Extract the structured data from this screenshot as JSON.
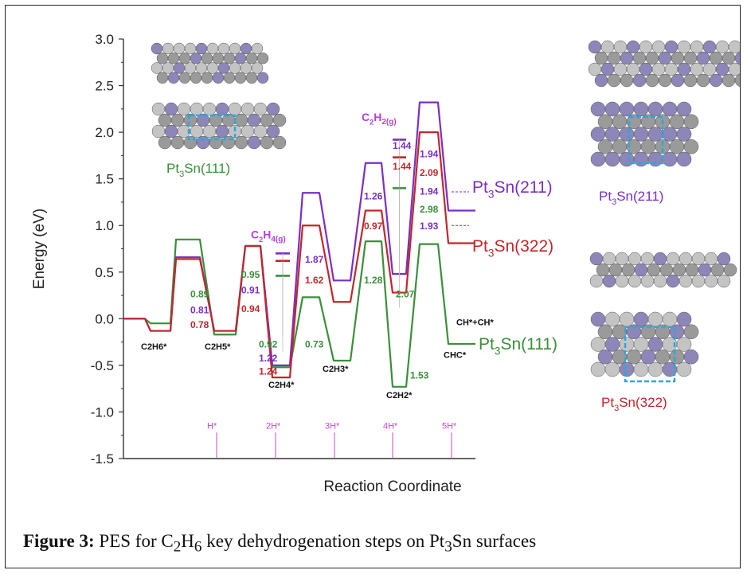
{
  "chart_data": {
    "type": "line",
    "xlabel": "Reaction Coordinate",
    "ylabel": "Energy (eV)",
    "ylim": [
      -1.5,
      3.0
    ],
    "yticks": [
      "3.0",
      "2.5",
      "2.0",
      "1.5",
      "1.0",
      "0.5",
      "0.0",
      "-0.5",
      "-1.0",
      "-1.5"
    ],
    "colors": {
      "Pt3Sn(111)": "#3a8f3a",
      "Pt3Sn(211)": "#7a2fc4",
      "Pt3Sn(322)": "#c0282c",
      "hydrogen_axis": "#cc44cc",
      "highlight": "#2aa7e0"
    },
    "series": [
      {
        "name": "Pt3Sn(111)",
        "levels": [
          0.0,
          -0.05,
          0.85,
          -0.17,
          0.78,
          -0.52,
          0.23,
          -0.45,
          0.83,
          -0.73,
          0.8,
          -0.27
        ]
      },
      {
        "name": "Pt3Sn(211)",
        "levels": [
          0.0,
          -0.13,
          0.66,
          -0.13,
          0.78,
          -0.5,
          1.35,
          0.41,
          1.67,
          0.48,
          2.32,
          1.16
        ]
      },
      {
        "name": "Pt3Sn(322)",
        "levels": [
          0.0,
          -0.13,
          0.64,
          -0.13,
          0.78,
          -0.63,
          1.0,
          0.18,
          1.16,
          0.28,
          2.0,
          0.81
        ]
      }
    ],
    "gas_levels": [
      {
        "name": "C2H4(g)",
        "values": {
          "Pt3Sn(211)": 0.7,
          "Pt3Sn(322)": 0.62,
          "Pt3Sn(111)": 0.46
        }
      },
      {
        "name": "C2H2(g)",
        "values": {
          "Pt3Sn(211)": 1.92,
          "Pt3Sn(322)": 1.73,
          "Pt3Sn(111)": 1.4
        }
      }
    ],
    "intermediates": [
      "C2H6*",
      "C2H5*",
      "C2H4*",
      "C2H3*",
      "C2H2*",
      "CHC*",
      "CH*+CH*"
    ],
    "hydrogen_marks": [
      "H*",
      "2H*",
      "3H*",
      "4H*",
      "5H*"
    ],
    "barrier_labels": [
      {
        "text": "0.89",
        "series": "Pt3Sn(111)",
        "e": 0.23
      },
      {
        "text": "0.81",
        "series": "Pt3Sn(211)",
        "e": 0.06
      },
      {
        "text": "0.78",
        "series": "Pt3Sn(322)",
        "e": -0.1
      },
      {
        "text": "0.95",
        "series": "Pt3Sn(111)",
        "e": 0.44
      },
      {
        "text": "0.91",
        "series": "Pt3Sn(211)",
        "e": 0.27
      },
      {
        "text": "0.94",
        "series": "Pt3Sn(322)",
        "e": 0.07
      },
      {
        "text": "0.92",
        "series": "Pt3Sn(111)",
        "e": -0.31
      },
      {
        "text": "1.22",
        "series": "Pt3Sn(211)",
        "e": -0.46
      },
      {
        "text": "1.24",
        "series": "Pt3Sn(322)",
        "e": -0.6
      },
      {
        "text": "1.87",
        "series": "Pt3Sn(211)",
        "e": 0.6
      },
      {
        "text": "1.62",
        "series": "Pt3Sn(322)",
        "e": 0.38
      },
      {
        "text": "0.73",
        "series": "Pt3Sn(111)",
        "e": -0.31
      },
      {
        "text": "1.26",
        "series": "Pt3Sn(211)",
        "e": 1.28
      },
      {
        "text": "0.97",
        "series": "Pt3Sn(322)",
        "e": 0.96
      },
      {
        "text": "1.28",
        "series": "Pt3Sn(111)",
        "e": 0.38
      },
      {
        "text": "1.44",
        "series": "Pt3Sn(211)",
        "e": 1.82
      },
      {
        "text": "1.44",
        "series": "Pt3Sn(322)",
        "e": 1.6
      },
      {
        "text": "2.07",
        "series": "Pt3Sn(111)",
        "e": 0.23
      },
      {
        "text": "1.53",
        "series": "Pt3Sn(111)",
        "e": -0.64
      },
      {
        "text": "1.94",
        "series": "Pt3Sn(211)",
        "e": 1.73
      },
      {
        "text": "2.09",
        "series": "Pt3Sn(322)",
        "e": 1.53
      },
      {
        "text": "1.94",
        "series": "Pt3Sn(211)",
        "e": 1.33
      },
      {
        "text": "2.98",
        "series": "Pt3Sn(111)",
        "e": 1.14
      },
      {
        "text": "1.93",
        "series": "Pt3Sn(211)",
        "e": 0.96
      }
    ],
    "series_labels": [
      {
        "base": "Pt",
        "sub": "3",
        "rest": "Sn(211)",
        "series": "Pt3Sn(211)"
      },
      {
        "base": "Pt",
        "sub": "3",
        "rest": "Sn(322)",
        "series": "Pt3Sn(322)"
      },
      {
        "base": "Pt",
        "sub": "3",
        "rest": "Sn(111)",
        "series": "Pt3Sn(111)"
      }
    ],
    "surface_labels": [
      {
        "base": "Pt",
        "sub": "3",
        "rest": "Sn(111)",
        "series": "Pt3Sn(111)"
      },
      {
        "base": "Pt",
        "sub": "3",
        "rest": "Sn(211)",
        "series": "Pt3Sn(211)"
      },
      {
        "base": "Pt",
        "sub": "3",
        "rest": "Sn(322)",
        "series": "Pt3Sn(322)"
      }
    ]
  },
  "caption": {
    "bold": "Figure 3:",
    "text_a": " PES for C",
    "sub_a": "2",
    "text_b": "H",
    "sub_b": "6",
    "text_c": " key dehydrogenation steps on Pt",
    "sub_c": "3",
    "text_d": "Sn surfaces"
  }
}
